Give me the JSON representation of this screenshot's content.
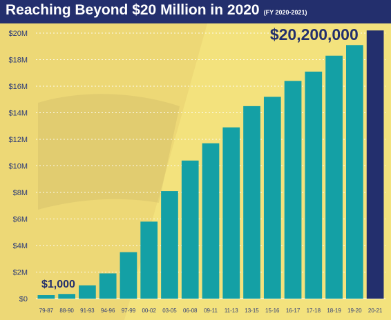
{
  "header": {
    "title": "Reaching Beyond $20 Million in 2020",
    "subtitle": "(FY 2020-2021)"
  },
  "colors": {
    "background": "#f3e27d",
    "title_bar": "#232f6d",
    "bar": "#14a0a5",
    "highlight_bar": "#232f6d",
    "tick_text": "#2b3a78",
    "annotation": "#232f6d"
  },
  "chart_data": {
    "type": "bar",
    "title": "Reaching Beyond $20 Million in 2020",
    "subtitle": "(FY 2020-2021)",
    "xlabel": "",
    "ylabel": "",
    "categories": [
      "79-87",
      "88-90",
      "91-93",
      "94-96",
      "97-99",
      "00-02",
      "03-05",
      "06-08",
      "09-11",
      "11-13",
      "13-15",
      "15-16",
      "16-17",
      "17-18",
      "18-19",
      "19-20",
      "20-21"
    ],
    "values": [
      0.001,
      0.35,
      1.0,
      1.9,
      3.5,
      5.8,
      8.1,
      10.4,
      11.7,
      12.9,
      14.5,
      15.2,
      16.4,
      17.1,
      18.3,
      19.1,
      20.2
    ],
    "unit": "million dollars",
    "highlight_index": 16,
    "ylim": [
      0,
      20
    ],
    "yticks": [
      0,
      2,
      4,
      6,
      8,
      10,
      12,
      14,
      16,
      18,
      20
    ],
    "ytick_labels": [
      "$0",
      "$2M",
      "$4M",
      "$6M",
      "$8M",
      "$10M",
      "$12M",
      "$14M",
      "$16M",
      "$18M",
      "$20M"
    ],
    "grid": "horizontal dashed",
    "legend": "none",
    "annotations": [
      {
        "text": "$1,000",
        "category": "79-87"
      },
      {
        "text": "$20,200,000",
        "category": "20-21"
      }
    ]
  }
}
